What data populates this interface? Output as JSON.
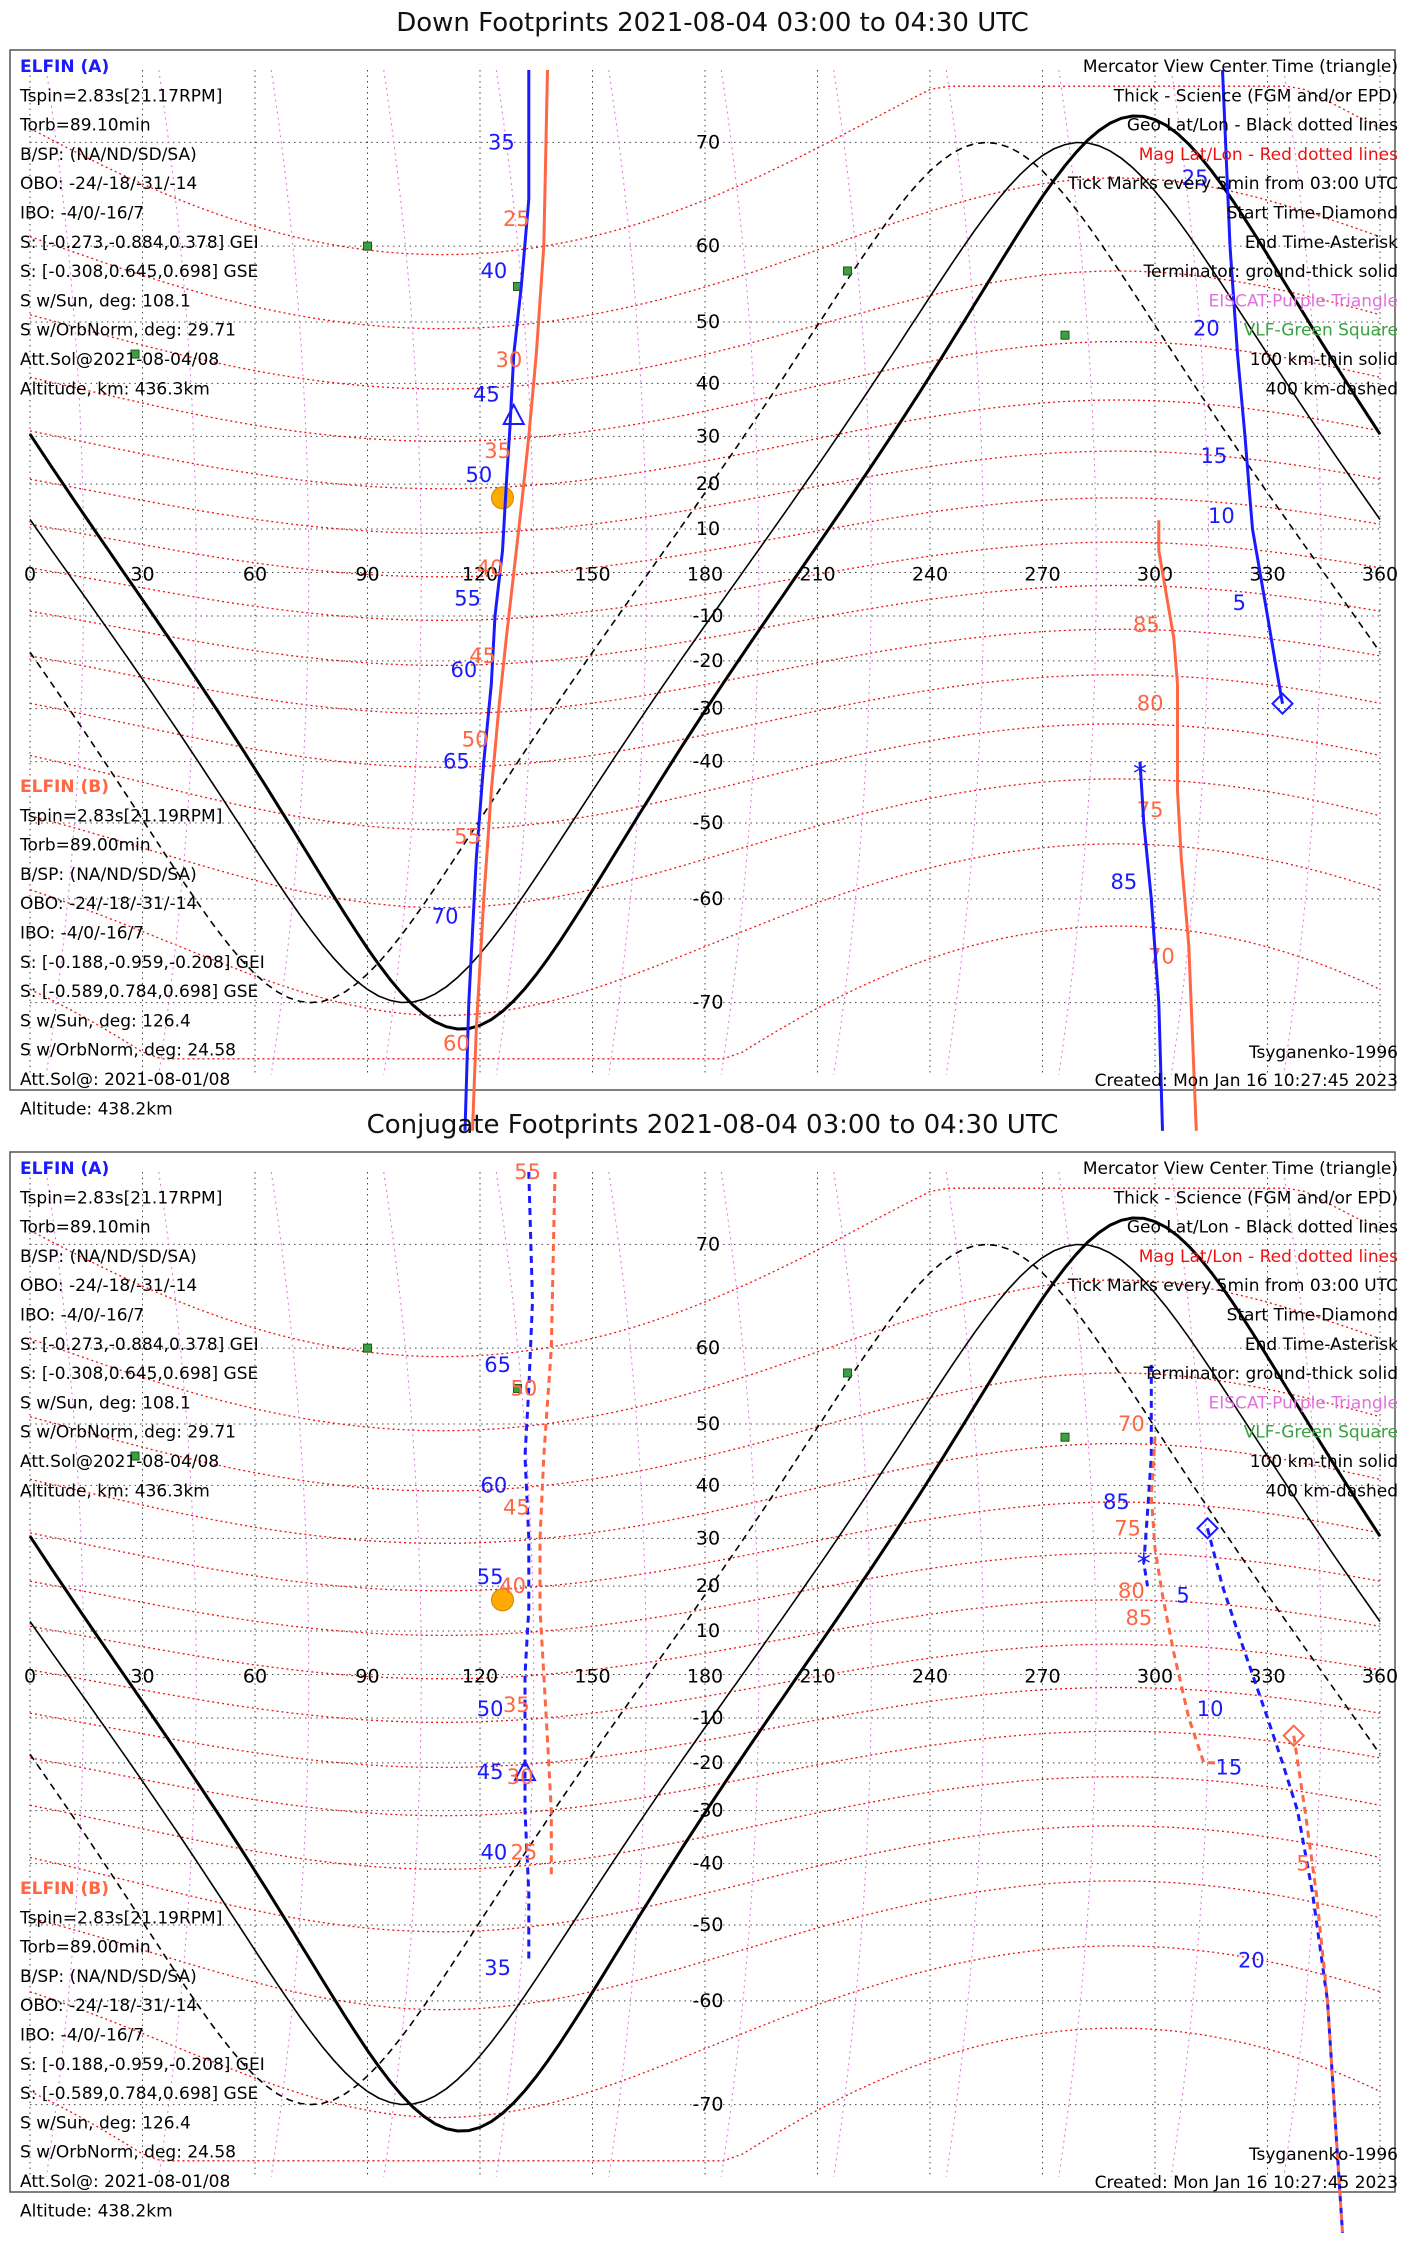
{
  "colors": {
    "elfin_a": "#1a1aff",
    "elfin_b": "#ff6644",
    "mag_grid": "#ee1111",
    "geo_grid": "#444444",
    "eiscat": "#e070e0",
    "vlf": "#3aa040",
    "sun": "#ffaa00"
  },
  "legend": {
    "lines": [
      {
        "text": "Mercator View Center Time (triangle)",
        "color": "#000000"
      },
      {
        "text": "Thick - Science (FGM and/or EPD)",
        "color": "#000000"
      },
      {
        "text": "Geo Lat/Lon - Black dotted lines",
        "color": "#000000"
      },
      {
        "text": "Mag Lat/Lon - Red dotted lines",
        "color": "#ee1111"
      },
      {
        "text": "Tick Marks every 5min from 03:00 UTC",
        "color": "#000000"
      },
      {
        "text": "Start Time-Diamond",
        "color": "#000000"
      },
      {
        "text": "End Time-Asterisk",
        "color": "#000000"
      },
      {
        "text": "Terminator: ground-thick solid",
        "color": "#000000"
      },
      {
        "text": "EISCAT-Purple Triangle",
        "color": "#e070e0"
      },
      {
        "text": "VLF-Green Square",
        "color": "#3aa040"
      },
      {
        "text": "100 km-thin solid",
        "color": "#000000"
      },
      {
        "text": "400 km-dashed",
        "color": "#000000"
      }
    ]
  },
  "elfin_a": {
    "label": "ELFIN (A)",
    "lines": [
      "Tspin=2.83s[21.17RPM]",
      "Torb=89.10min",
      "B/SP: (NA/ND/SD/SA)",
      "OBO: -24/-18/-31/-14",
      "IBO: -4/0/-16/7",
      "S: [-0.273,-0.884,0.378] GEI",
      "S: [-0.308,0.645,0.698] GSE",
      "S w/Sun, deg: 108.1",
      "S w/OrbNorm, deg: 29.71",
      "Att.Sol@2021-08-04/08",
      "Altitude, km: 436.3km"
    ]
  },
  "elfin_b": {
    "label": "ELFIN (B)",
    "lines": [
      "Tspin=2.83s[21.19RPM]",
      "Torb=89.00min",
      "B/SP: (NA/ND/SD/SA)",
      "OBO: -24/-18/-31/-14",
      "IBO: -4/0/-16/7",
      "S: [-0.188,-0.959,-0.208] GEI",
      "S: [-0.589,0.784,0.698] GSE",
      "S w/Sun, deg: 126.4",
      "S w/OrbNorm, deg: 24.58",
      "Att.Sol@: 2021-08-01/08",
      "Altitude: 438.2km"
    ]
  },
  "footer": {
    "model": "Tsyganenko-1996",
    "created": "Created: Mon Jan 16 10:27:45 2023"
  },
  "chart_data": [
    {
      "type": "map",
      "title": "Down Footprints 2021-08-04 03:00 to 04:30 UTC",
      "projection": "mercator",
      "xlim": [
        0,
        360
      ],
      "ylim": [
        -75,
        75
      ],
      "lon_ticks": [
        0,
        30,
        60,
        90,
        120,
        150,
        180,
        210,
        240,
        270,
        300,
        330,
        360
      ],
      "lat_ticks": [
        70,
        60,
        50,
        40,
        30,
        20,
        10,
        -10,
        -20,
        -30,
        -40,
        -50,
        -60,
        -70
      ],
      "subsolar_point": [
        126,
        17
      ],
      "vlf_sites": [
        [
          90,
          60
        ],
        [
          28,
          45
        ],
        [
          130,
          55
        ],
        [
          218,
          57
        ],
        [
          276,
          48
        ]
      ],
      "series": [
        {
          "name": "ELFIN (A)",
          "lon_lat": [
            [
              133,
              75
            ],
            [
              133,
              65
            ],
            [
              131,
              55
            ],
            [
              129,
              45
            ],
            [
              128,
              32
            ],
            [
              127,
              20
            ],
            [
              126,
              5
            ],
            [
              124,
              -10
            ],
            [
              123,
              -25
            ],
            [
              121,
              -40
            ],
            [
              119,
              -55
            ],
            [
              117,
              -70
            ],
            [
              116,
              -78
            ]
          ],
          "ticks": [
            {
              "t": "35",
              "lon": 133,
              "lat": 70
            },
            {
              "t": "40",
              "lon": 131,
              "lat": 57
            },
            {
              "t": "45",
              "lon": 129,
              "lat": 38
            },
            {
              "t": "50",
              "lon": 127,
              "lat": 22
            },
            {
              "t": "55",
              "lon": 124,
              "lat": -6
            },
            {
              "t": "60",
              "lon": 123,
              "lat": -22
            },
            {
              "t": "65",
              "lon": 121,
              "lat": -40
            },
            {
              "t": "70",
              "lon": 118,
              "lat": -62
            }
          ],
          "view_center": [
            129,
            34
          ]
        },
        {
          "name": "ELFIN (B)",
          "lon_lat": [
            [
              138,
              75
            ],
            [
              137,
              60
            ],
            [
              135,
              45
            ],
            [
              133,
              30
            ],
            [
              131,
              15
            ],
            [
              129,
              0
            ],
            [
              127,
              -15
            ],
            [
              125,
              -30
            ],
            [
              123,
              -45
            ],
            [
              121,
              -60
            ],
            [
              119,
              -72
            ],
            [
              118,
              -78
            ]
          ],
          "ticks": [
            {
              "t": "25",
              "lon": 137,
              "lat": 63
            },
            {
              "t": "30",
              "lon": 135,
              "lat": 44
            },
            {
              "t": "35",
              "lon": 132,
              "lat": 27
            },
            {
              "t": "40",
              "lon": 130,
              "lat": 1
            },
            {
              "t": "45",
              "lon": 128,
              "lat": -19
            },
            {
              "t": "50",
              "lon": 126,
              "lat": -36
            },
            {
              "t": "55",
              "lon": 124,
              "lat": -52
            },
            {
              "t": "60",
              "lon": 121,
              "lat": -73
            }
          ]
        },
        {
          "name": "ELFIN (A)",
          "lon_lat": [
            [
              318,
              75
            ],
            [
              320,
              60
            ],
            [
              322,
              45
            ],
            [
              324,
              30
            ],
            [
              325,
              20
            ],
            [
              326,
              10
            ],
            [
              328,
              0
            ],
            [
              330,
              -10
            ],
            [
              332,
              -20
            ],
            [
              334,
              -29
            ]
          ],
          "ticks": [
            {
              "t": "25",
              "lon": 318,
              "lat": 67
            },
            {
              "t": "20",
              "lon": 321,
              "lat": 49
            },
            {
              "t": "15",
              "lon": 323,
              "lat": 26
            },
            {
              "t": "10",
              "lon": 325,
              "lat": 13
            },
            {
              "t": "5",
              "lon": 328,
              "lat": -7
            }
          ],
          "start_diamond": [
            334,
            -29
          ]
        },
        {
          "name": "ELFIN (B)",
          "lon_lat": [
            [
              301,
              12
            ],
            [
              301,
              5
            ],
            [
              303,
              -5
            ],
            [
              305,
              -15
            ],
            [
              306,
              -25
            ],
            [
              306,
              -35
            ],
            [
              306,
              -45
            ],
            [
              307,
              -55
            ],
            [
              309,
              -65
            ],
            [
              311,
              -78
            ]
          ],
          "ticks": [
            {
              "t": "85",
              "lon": 305,
              "lat": -12
            },
            {
              "t": "80",
              "lon": 306,
              "lat": -29
            },
            {
              "t": "75",
              "lon": 306,
              "lat": -48
            },
            {
              "t": "70",
              "lon": 309,
              "lat": -66
            }
          ]
        },
        {
          "name": "ELFIN (A)",
          "lon_lat": [
            [
              296,
              -40
            ],
            [
              297,
              -50
            ],
            [
              299,
              -60
            ],
            [
              301,
              -70
            ],
            [
              302,
              -78
            ]
          ],
          "ticks": [
            {
              "t": "85",
              "lon": 299,
              "lat": -58
            }
          ],
          "end_asterisk": [
            296,
            -42
          ]
        }
      ]
    },
    {
      "type": "map",
      "title": "Conjugate Footprints 2021-08-04 03:00 to 04:30 UTC",
      "projection": "mercator",
      "xlim": [
        0,
        360
      ],
      "ylim": [
        -75,
        75
      ],
      "lon_ticks": [
        0,
        30,
        60,
        90,
        120,
        150,
        180,
        210,
        240,
        270,
        300,
        330,
        360
      ],
      "lat_ticks": [
        70,
        60,
        50,
        40,
        30,
        20,
        10,
        -10,
        -20,
        -30,
        -40,
        -50,
        -60,
        -70
      ],
      "subsolar_point": [
        126,
        17
      ],
      "vlf_sites": [
        [
          90,
          60
        ],
        [
          28,
          45
        ],
        [
          130,
          55
        ],
        [
          218,
          57
        ],
        [
          276,
          48
        ]
      ],
      "series": [
        {
          "name": "ELFIN (A)",
          "lon_lat": [
            [
              133,
              75
            ],
            [
              134,
              65
            ],
            [
              133,
              55
            ],
            [
              132,
              45
            ],
            [
              133,
              30
            ],
            [
              133,
              15
            ],
            [
              132,
              0
            ],
            [
              132,
              -15
            ],
            [
              132,
              -30
            ],
            [
              133,
              -45
            ],
            [
              133,
              -55
            ]
          ],
          "ticks": [
            {
              "t": "65",
              "lon": 132,
              "lat": 58
            },
            {
              "t": "60",
              "lon": 131,
              "lat": 40
            },
            {
              "t": "55",
              "lon": 130,
              "lat": 22
            },
            {
              "t": "50",
              "lon": 130,
              "lat": -8
            },
            {
              "t": "45",
              "lon": 130,
              "lat": -22
            },
            {
              "t": "40",
              "lon": 131,
              "lat": -38
            },
            {
              "t": "35",
              "lon": 132,
              "lat": -56
            }
          ],
          "view_center": [
            132,
            -22
          ]
        },
        {
          "name": "ELFIN (B)",
          "lon_lat": [
            [
              140,
              75
            ],
            [
              139,
              60
            ],
            [
              137,
              45
            ],
            [
              136,
              30
            ],
            [
              136,
              15
            ],
            [
              137,
              0
            ],
            [
              138,
              -15
            ],
            [
              139,
              -30
            ],
            [
              139,
              -42
            ]
          ],
          "ticks": [
            {
              "t": "55",
              "lon": 140,
              "lat": 75
            },
            {
              "t": "50",
              "lon": 139,
              "lat": 55
            },
            {
              "t": "45",
              "lon": 137,
              "lat": 36
            },
            {
              "t": "40",
              "lon": 136,
              "lat": 20
            },
            {
              "t": "35",
              "lon": 137,
              "lat": -7
            },
            {
              "t": "30",
              "lon": 138,
              "lat": -23
            },
            {
              "t": "25",
              "lon": 139,
              "lat": -38
            }
          ]
        },
        {
          "name": "ELFIN (A)",
          "lon_lat": [
            [
              299,
              58
            ],
            [
              299,
              45
            ],
            [
              298,
              35
            ],
            [
              297,
              25
            ],
            [
              298,
              20
            ]
          ],
          "ticks": [
            {
              "t": "85",
              "lon": 297,
              "lat": 37
            }
          ],
          "end_asterisk": [
            297,
            25
          ]
        },
        {
          "name": "ELFIN (A)",
          "lon_lat": [
            [
              314,
              32
            ],
            [
              318,
              20
            ],
            [
              322,
              10
            ],
            [
              326,
              0
            ],
            [
              330,
              -10
            ],
            [
              334,
              -20
            ],
            [
              338,
              -30
            ],
            [
              342,
              -45
            ],
            [
              346,
              -60
            ],
            [
              350,
              -78
            ]
          ],
          "ticks": [
            {
              "t": "5",
              "lon": 313,
              "lat": 18
            },
            {
              "t": "10",
              "lon": 322,
              "lat": -8
            },
            {
              "t": "15",
              "lon": 327,
              "lat": -21
            },
            {
              "t": "20",
              "lon": 333,
              "lat": -55
            }
          ],
          "start_diamond": [
            314,
            32
          ]
        },
        {
          "name": "ELFIN (B)",
          "lon_lat": [
            [
              300,
              48
            ],
            [
              299,
              38
            ],
            [
              300,
              28
            ],
            [
              302,
              18
            ],
            [
              305,
              5
            ],
            [
              309,
              -10
            ],
            [
              313,
              -20
            ],
            [
              316,
              -20
            ]
          ],
          "ticks": [
            {
              "t": "70",
              "lon": 301,
              "lat": 50
            },
            {
              "t": "75",
              "lon": 300,
              "lat": 32
            },
            {
              "t": "80",
              "lon": 301,
              "lat": 19
            },
            {
              "t": "85",
              "lon": 303,
              "lat": 13
            }
          ]
        },
        {
          "name": "ELFIN (B)",
          "lon_lat": [
            [
              337,
              -14
            ],
            [
              340,
              -30
            ],
            [
              343,
              -45
            ],
            [
              346,
              -60
            ],
            [
              350,
              -78
            ]
          ],
          "ticks": [
            {
              "t": "5",
              "lon": 345,
              "lat": -40
            }
          ],
          "start_diamond": [
            337,
            -14
          ]
        }
      ]
    }
  ]
}
